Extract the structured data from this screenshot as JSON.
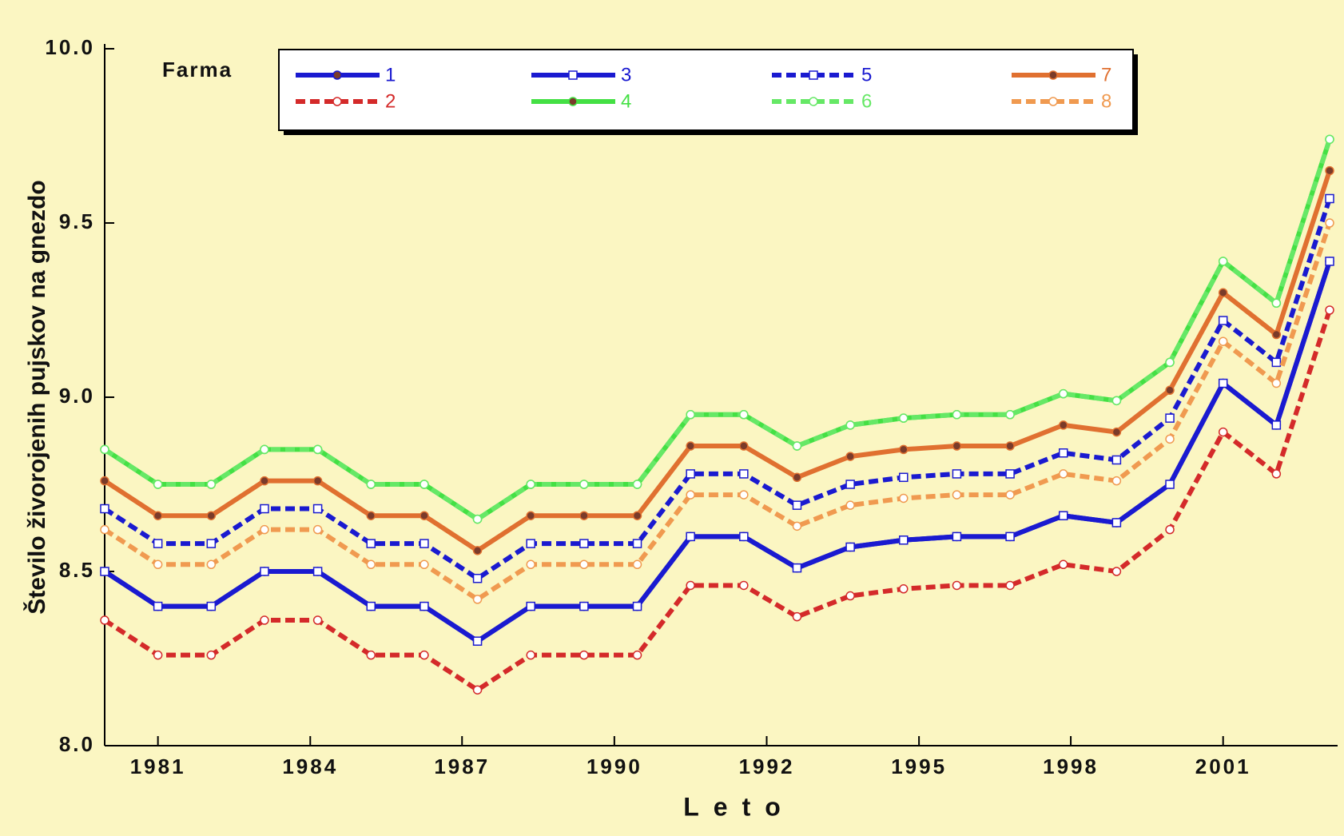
{
  "chart_data": {
    "type": "line",
    "x_label": "Leto",
    "y_label": "Število živorojenih pujskov na gnezdo",
    "legend_title": "Farma",
    "x": [
      1980,
      1981,
      1982,
      1983,
      1984,
      1985,
      1986,
      1987,
      1988,
      1989,
      1990,
      1991,
      1992,
      1993,
      1994,
      1995,
      1996,
      1997,
      1998,
      1999,
      2000,
      2001,
      2002,
      2003
    ],
    "xlim": [
      1980,
      2003
    ],
    "xticks": [
      {
        "value": 1981,
        "label": "1981"
      },
      {
        "value": 1983.86,
        "label": "1984"
      },
      {
        "value": 1986.71,
        "label": "1987"
      },
      {
        "value": 1989.57,
        "label": "1990"
      },
      {
        "value": 1992.43,
        "label": "1992"
      },
      {
        "value": 1995.29,
        "label": "1995"
      },
      {
        "value": 1998.14,
        "label": "1998"
      },
      {
        "value": 2001,
        "label": "2001"
      }
    ],
    "ylim": [
      8,
      10
    ],
    "yticks": [
      {
        "value": 8,
        "label": "8.0"
      },
      8.5,
      {
        "value": 9,
        "label": "9.0"
      },
      9.5,
      {
        "value": 10,
        "label": "10.0"
      }
    ],
    "legend": "top",
    "series": [
      {
        "name": "1",
        "color": "#1a1ad0",
        "dash": false,
        "marker": "circle",
        "values": [
          8.5,
          8.4,
          8.4,
          8.5,
          8.5,
          8.4,
          8.4,
          8.3,
          8.4,
          8.4,
          8.4,
          8.6,
          8.6,
          8.51,
          8.57,
          8.59,
          8.6,
          8.6,
          8.66,
          8.64,
          8.75,
          9.04,
          8.92,
          9.39
        ]
      },
      {
        "name": "2",
        "color": "#d42a2a",
        "dash": true,
        "marker": "circle",
        "values": [
          8.36,
          8.26,
          8.26,
          8.36,
          8.36,
          8.26,
          8.26,
          8.16,
          8.26,
          8.26,
          8.26,
          8.46,
          8.46,
          8.37,
          8.43,
          8.45,
          8.46,
          8.46,
          8.52,
          8.5,
          8.62,
          8.9,
          8.78,
          9.25
        ]
      },
      {
        "name": "3",
        "color": "#1a1ad0",
        "dash": false,
        "marker": "square",
        "values": [
          8.5,
          8.4,
          8.4,
          8.5,
          8.5,
          8.4,
          8.4,
          8.3,
          8.4,
          8.4,
          8.4,
          8.6,
          8.6,
          8.51,
          8.57,
          8.59,
          8.6,
          8.6,
          8.66,
          8.64,
          8.75,
          9.04,
          8.92,
          9.39
        ]
      },
      {
        "name": "4",
        "color": "#44e044",
        "dash": false,
        "marker": "circle",
        "values": [
          8.85,
          8.75,
          8.75,
          8.85,
          8.85,
          8.75,
          8.75,
          8.65,
          8.75,
          8.75,
          8.75,
          8.95,
          8.95,
          8.86,
          8.92,
          8.94,
          8.95,
          8.95,
          9.01,
          8.99,
          9.1,
          9.39,
          9.27,
          9.74
        ]
      },
      {
        "name": "5",
        "color": "#1a1ad0",
        "dash": true,
        "marker": "square",
        "values": [
          8.68,
          8.58,
          8.58,
          8.68,
          8.68,
          8.58,
          8.58,
          8.48,
          8.58,
          8.58,
          8.58,
          8.78,
          8.78,
          8.69,
          8.75,
          8.77,
          8.78,
          8.78,
          8.84,
          8.82,
          8.94,
          9.22,
          9.1,
          9.57
        ]
      },
      {
        "name": "6",
        "color": "#66e866",
        "dash": true,
        "marker": "circle",
        "values": [
          8.85,
          8.75,
          8.75,
          8.85,
          8.85,
          8.75,
          8.75,
          8.65,
          8.75,
          8.75,
          8.75,
          8.95,
          8.95,
          8.86,
          8.92,
          8.94,
          8.95,
          8.95,
          9.01,
          8.99,
          9.1,
          9.39,
          9.27,
          9.74
        ]
      },
      {
        "name": "7",
        "color": "#e07030",
        "dash": false,
        "marker": "circle",
        "values": [
          8.76,
          8.66,
          8.66,
          8.76,
          8.76,
          8.66,
          8.66,
          8.56,
          8.66,
          8.66,
          8.66,
          8.86,
          8.86,
          8.77,
          8.83,
          8.85,
          8.86,
          8.86,
          8.92,
          8.9,
          9.02,
          9.3,
          9.18,
          9.65
        ]
      },
      {
        "name": "8",
        "color": "#f09a50",
        "dash": true,
        "marker": "circle",
        "values": [
          8.62,
          8.52,
          8.52,
          8.62,
          8.62,
          8.52,
          8.52,
          8.42,
          8.52,
          8.52,
          8.52,
          8.72,
          8.72,
          8.63,
          8.69,
          8.71,
          8.72,
          8.72,
          8.78,
          8.76,
          8.88,
          9.16,
          9.04,
          9.5
        ]
      }
    ]
  }
}
